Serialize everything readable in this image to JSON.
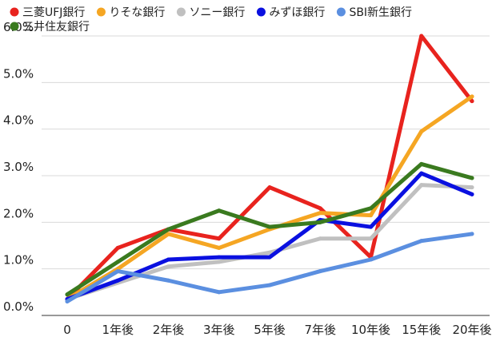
{
  "chart_data": {
    "type": "line",
    "title": "",
    "xlabel": "",
    "ylabel": "",
    "categories": [
      "0",
      "1年後",
      "2年後",
      "3年後",
      "5年後",
      "7年後",
      "10年後",
      "15年後",
      "20年後"
    ],
    "y_ticks": [
      "0.0%",
      "1.0%",
      "2.0%",
      "3.0%",
      "4.0%",
      "5.0%",
      "6.0%"
    ],
    "ylim": [
      0,
      6
    ],
    "grid": true,
    "legend_position": "top",
    "series": [
      {
        "name": "三菱UFJ銀行",
        "color": "#e8231e",
        "values": [
          0.35,
          1.45,
          1.85,
          1.65,
          2.75,
          2.3,
          1.25,
          6.0,
          4.6
        ]
      },
      {
        "name": "りそな銀行",
        "color": "#f5a623",
        "values": [
          0.35,
          1.0,
          1.75,
          1.45,
          1.85,
          2.2,
          2.15,
          3.95,
          4.7
        ]
      },
      {
        "name": "ソニー銀行",
        "color": "#c0c0c0",
        "values": [
          0.35,
          0.7,
          1.05,
          1.15,
          1.35,
          1.65,
          1.65,
          2.8,
          2.75
        ]
      },
      {
        "name": "みずほ銀行",
        "color": "#0a10e0",
        "values": [
          0.35,
          0.75,
          1.2,
          1.25,
          1.25,
          2.05,
          1.9,
          3.05,
          2.6
        ]
      },
      {
        "name": "SBI新生銀行",
        "color": "#5b8fe0",
        "values": [
          0.3,
          0.95,
          0.75,
          0.5,
          0.65,
          0.95,
          1.2,
          1.6,
          1.75
        ]
      },
      {
        "name": "三井住友銀行",
        "color": "#3a7a1f",
        "values": [
          0.45,
          1.15,
          1.85,
          2.25,
          1.9,
          2.0,
          2.3,
          3.25,
          2.95
        ]
      }
    ]
  }
}
